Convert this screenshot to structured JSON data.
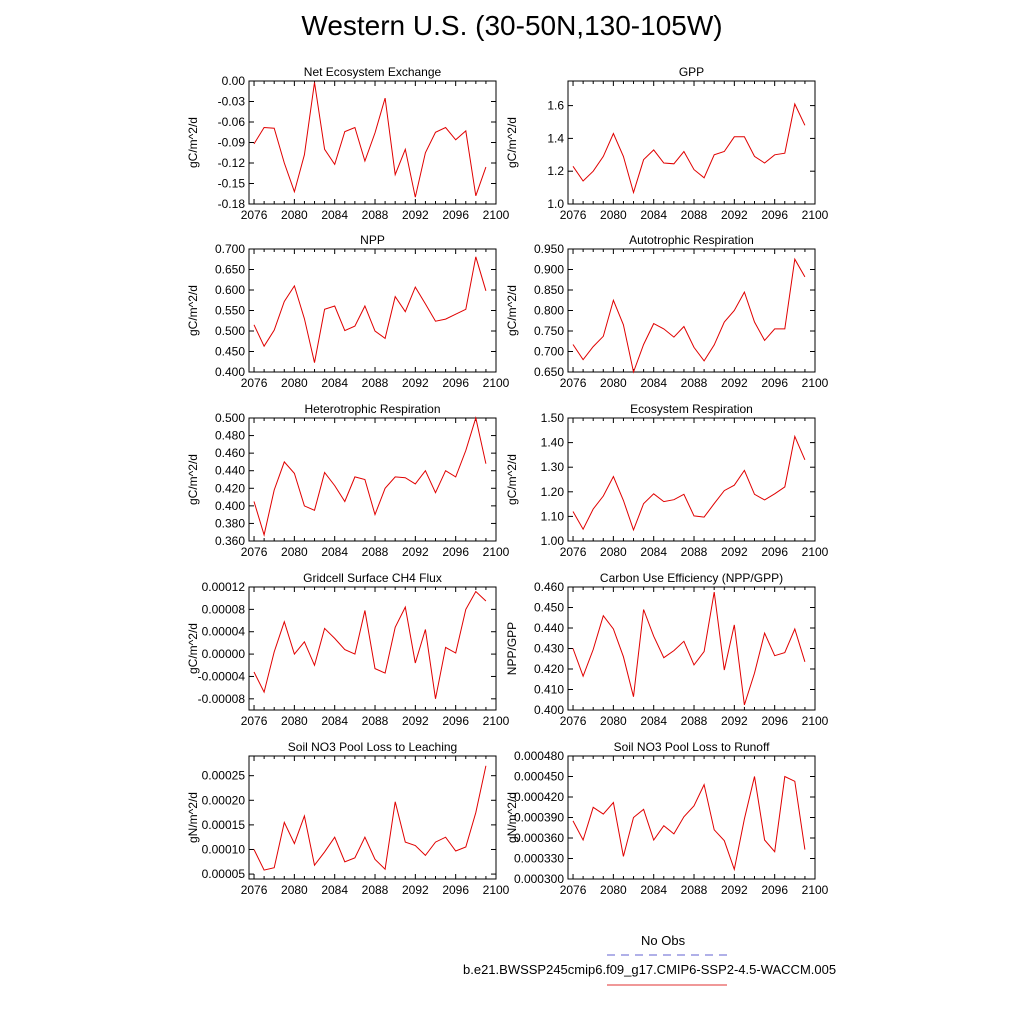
{
  "figure": {
    "title": "Western U.S. (30-50N,130-105W)"
  },
  "legend": {
    "entries": [
      {
        "label": "No Obs",
        "color": "#6060d0",
        "style": "dashed"
      },
      {
        "label": "b.e21.BWSSP245cmip6.f09_g17.CMIP6-SSP2-4.5-WACCM.005",
        "color": "#e03030",
        "style": "solid"
      }
    ]
  },
  "chart_data": [
    {
      "type": "line",
      "title": "Net Ecosystem Exchange",
      "ylabel": "gC/m^2/d",
      "xlim": [
        2075.5,
        2100
      ],
      "ylim": [
        -0.18,
        0.0
      ],
      "yticks": [
        -0.18,
        -0.15,
        -0.12,
        -0.09,
        -0.06,
        -0.03,
        0.0
      ],
      "ytick_labels": [
        "-0.18",
        "-0.15",
        "-0.12",
        "-0.09",
        "-0.06",
        "-0.03",
        "0.00"
      ],
      "xticks": [
        2076,
        2080,
        2084,
        2088,
        2092,
        2096,
        2100
      ],
      "series": [
        {
          "color": "#e00000",
          "x": [
            2076,
            2077,
            2078,
            2079,
            2080,
            2081,
            2082,
            2083,
            2084,
            2085,
            2086,
            2087,
            2088,
            2089,
            2090,
            2091,
            2092,
            2093,
            2094,
            2095,
            2096,
            2097,
            2098,
            2099
          ],
          "y": [
            -0.092,
            -0.068,
            -0.069,
            -0.12,
            -0.162,
            -0.108,
            -0.002,
            -0.1,
            -0.122,
            -0.074,
            -0.068,
            -0.117,
            -0.076,
            -0.025,
            -0.137,
            -0.1,
            -0.17,
            -0.105,
            -0.075,
            -0.068,
            -0.086,
            -0.073,
            -0.168,
            -0.126
          ]
        }
      ]
    },
    {
      "type": "line",
      "title": "GPP",
      "ylabel": "gC/m^2/d",
      "xlim": [
        2075.5,
        2100
      ],
      "ylim": [
        1.0,
        1.75
      ],
      "yticks": [
        1.0,
        1.2,
        1.4,
        1.6
      ],
      "ytick_labels": [
        "1.0",
        "1.2",
        "1.4",
        "1.6"
      ],
      "xticks": [
        2076,
        2080,
        2084,
        2088,
        2092,
        2096,
        2100
      ],
      "series": [
        {
          "color": "#e00000",
          "x": [
            2076,
            2077,
            2078,
            2079,
            2080,
            2081,
            2082,
            2083,
            2084,
            2085,
            2086,
            2087,
            2088,
            2089,
            2090,
            2091,
            2092,
            2093,
            2094,
            2095,
            2096,
            2097,
            2098,
            2099
          ],
          "y": [
            1.23,
            1.14,
            1.2,
            1.29,
            1.43,
            1.29,
            1.07,
            1.27,
            1.33,
            1.25,
            1.245,
            1.32,
            1.21,
            1.16,
            1.3,
            1.32,
            1.41,
            1.41,
            1.29,
            1.25,
            1.3,
            1.31,
            1.61,
            1.48
          ]
        }
      ]
    },
    {
      "type": "line",
      "title": "NPP",
      "ylabel": "gC/m^2/d",
      "xlim": [
        2075.5,
        2100
      ],
      "ylim": [
        0.4,
        0.7
      ],
      "yticks": [
        0.4,
        0.45,
        0.5,
        0.55,
        0.6,
        0.65,
        0.7
      ],
      "ytick_labels": [
        "0.400",
        "0.450",
        "0.500",
        "0.550",
        "0.600",
        "0.650",
        "0.700"
      ],
      "xticks": [
        2076,
        2080,
        2084,
        2088,
        2092,
        2096,
        2100
      ],
      "series": [
        {
          "color": "#e00000",
          "x": [
            2076,
            2077,
            2078,
            2079,
            2080,
            2081,
            2082,
            2083,
            2084,
            2085,
            2086,
            2087,
            2088,
            2089,
            2090,
            2091,
            2092,
            2093,
            2094,
            2095,
            2096,
            2097,
            2098,
            2099
          ],
          "y": [
            0.515,
            0.463,
            0.502,
            0.572,
            0.61,
            0.53,
            0.423,
            0.553,
            0.561,
            0.501,
            0.512,
            0.561,
            0.5,
            0.482,
            0.584,
            0.547,
            0.607,
            0.566,
            0.524,
            0.529,
            0.541,
            0.553,
            0.681,
            0.598
          ]
        }
      ]
    },
    {
      "type": "line",
      "title": "Autotrophic Respiration",
      "ylabel": "gC/m^2/d",
      "xlim": [
        2075.5,
        2100
      ],
      "ylim": [
        0.65,
        0.95
      ],
      "yticks": [
        0.65,
        0.7,
        0.75,
        0.8,
        0.85,
        0.9,
        0.95
      ],
      "ytick_labels": [
        "0.650",
        "0.700",
        "0.750",
        "0.800",
        "0.850",
        "0.900",
        "0.950"
      ],
      "xticks": [
        2076,
        2080,
        2084,
        2088,
        2092,
        2096,
        2100
      ],
      "series": [
        {
          "color": "#e00000",
          "x": [
            2076,
            2077,
            2078,
            2079,
            2080,
            2081,
            2082,
            2083,
            2084,
            2085,
            2086,
            2087,
            2088,
            2089,
            2090,
            2091,
            2092,
            2093,
            2094,
            2095,
            2096,
            2097,
            2098,
            2099
          ],
          "y": [
            0.717,
            0.68,
            0.712,
            0.737,
            0.825,
            0.765,
            0.65,
            0.717,
            0.768,
            0.755,
            0.735,
            0.761,
            0.71,
            0.677,
            0.716,
            0.772,
            0.8,
            0.845,
            0.772,
            0.727,
            0.755,
            0.755,
            0.925,
            0.882
          ]
        }
      ]
    },
    {
      "type": "line",
      "title": "Heterotrophic Respiration",
      "ylabel": "gC/m^2/d",
      "xlim": [
        2075.5,
        2100
      ],
      "ylim": [
        0.36,
        0.5
      ],
      "yticks": [
        0.36,
        0.38,
        0.4,
        0.42,
        0.44,
        0.46,
        0.48,
        0.5
      ],
      "ytick_labels": [
        "0.360",
        "0.380",
        "0.400",
        "0.420",
        "0.440",
        "0.460",
        "0.480",
        "0.500"
      ],
      "xticks": [
        2076,
        2080,
        2084,
        2088,
        2092,
        2096,
        2100
      ],
      "series": [
        {
          "color": "#e00000",
          "x": [
            2076,
            2077,
            2078,
            2079,
            2080,
            2081,
            2082,
            2083,
            2084,
            2085,
            2086,
            2087,
            2088,
            2089,
            2090,
            2091,
            2092,
            2093,
            2094,
            2095,
            2096,
            2097,
            2098,
            2099
          ],
          "y": [
            0.405,
            0.367,
            0.418,
            0.45,
            0.437,
            0.4,
            0.395,
            0.438,
            0.423,
            0.405,
            0.433,
            0.43,
            0.39,
            0.42,
            0.433,
            0.432,
            0.425,
            0.44,
            0.415,
            0.44,
            0.433,
            0.463,
            0.5,
            0.448
          ]
        }
      ]
    },
    {
      "type": "line",
      "title": "Ecosystem Respiration",
      "ylabel": "gC/m^2/d",
      "xlim": [
        2075.5,
        2100
      ],
      "ylim": [
        1.0,
        1.5
      ],
      "yticks": [
        1.0,
        1.1,
        1.2,
        1.3,
        1.4,
        1.5
      ],
      "ytick_labels": [
        "1.00",
        "1.10",
        "1.20",
        "1.30",
        "1.40",
        "1.50"
      ],
      "xticks": [
        2076,
        2080,
        2084,
        2088,
        2092,
        2096,
        2100
      ],
      "series": [
        {
          "color": "#e00000",
          "x": [
            2076,
            2077,
            2078,
            2079,
            2080,
            2081,
            2082,
            2083,
            2084,
            2085,
            2086,
            2087,
            2088,
            2089,
            2090,
            2091,
            2092,
            2093,
            2094,
            2095,
            2096,
            2097,
            2098,
            2099
          ],
          "y": [
            1.12,
            1.048,
            1.13,
            1.183,
            1.262,
            1.165,
            1.045,
            1.152,
            1.192,
            1.16,
            1.168,
            1.19,
            1.102,
            1.097,
            1.152,
            1.205,
            1.227,
            1.287,
            1.19,
            1.167,
            1.192,
            1.22,
            1.425,
            1.33
          ]
        }
      ]
    },
    {
      "type": "line",
      "title": "Gridcell Surface CH4 Flux",
      "ylabel": "gC/m^2/d",
      "xlim": [
        2075.5,
        2100
      ],
      "ylim": [
        -0.0001,
        0.00012
      ],
      "yticks": [
        -8e-05,
        -4e-05,
        0.0,
        4e-05,
        8e-05,
        0.00012
      ],
      "ytick_labels": [
        "-0.00008",
        "-0.00004",
        "0.00000",
        "0.00004",
        "0.00008",
        "0.00012"
      ],
      "xticks": [
        2076,
        2080,
        2084,
        2088,
        2092,
        2096,
        2100
      ],
      "series": [
        {
          "color": "#e00000",
          "x": [
            2076,
            2077,
            2078,
            2079,
            2080,
            2081,
            2082,
            2083,
            2084,
            2085,
            2086,
            2087,
            2088,
            2089,
            2090,
            2091,
            2092,
            2093,
            2094,
            2095,
            2096,
            2097,
            2098,
            2099
          ],
          "y": [
            -3.2e-05,
            -6.8e-05,
            4e-06,
            5.8e-05,
            0.0,
            2.2e-05,
            -2e-05,
            4.6e-05,
            2.8e-05,
            8e-06,
            0.0,
            7.8e-05,
            -2.6e-05,
            -3.4e-05,
            4.8e-05,
            8.4e-05,
            -1.6e-05,
            4.4e-05,
            -8e-05,
            1.2e-05,
            2e-06,
            8e-05,
            0.000112,
            9.5e-05
          ]
        }
      ]
    },
    {
      "type": "line",
      "title": "Carbon Use Efficiency (NPP/GPP)",
      "ylabel": "NPP/GPP",
      "xlim": [
        2075.5,
        2100
      ],
      "ylim": [
        0.4,
        0.46
      ],
      "yticks": [
        0.4,
        0.41,
        0.42,
        0.43,
        0.44,
        0.45,
        0.46
      ],
      "ytick_labels": [
        "0.400",
        "0.410",
        "0.420",
        "0.430",
        "0.440",
        "0.450",
        "0.460"
      ],
      "xticks": [
        2076,
        2080,
        2084,
        2088,
        2092,
        2096,
        2100
      ],
      "series": [
        {
          "color": "#e00000",
          "x": [
            2076,
            2077,
            2078,
            2079,
            2080,
            2081,
            2082,
            2083,
            2084,
            2085,
            2086,
            2087,
            2088,
            2089,
            2090,
            2091,
            2092,
            2093,
            2094,
            2095,
            2096,
            2097,
            2098,
            2099
          ],
          "y": [
            0.43,
            0.4165,
            0.4295,
            0.446,
            0.4395,
            0.426,
            0.4065,
            0.449,
            0.436,
            0.4255,
            0.429,
            0.4335,
            0.422,
            0.4285,
            0.4575,
            0.4195,
            0.4415,
            0.4025,
            0.418,
            0.4375,
            0.4265,
            0.428,
            0.4395,
            0.4235
          ]
        }
      ]
    },
    {
      "type": "line",
      "title": "Soil NO3 Pool Loss to Leaching",
      "ylabel": "gN/m^2/d",
      "xlim": [
        2075.5,
        2100
      ],
      "ylim": [
        4e-05,
        0.00029
      ],
      "yticks": [
        5e-05,
        0.0001,
        0.00015,
        0.0002,
        0.00025
      ],
      "ytick_labels": [
        "0.00005",
        "0.00010",
        "0.00015",
        "0.00020",
        "0.00025"
      ],
      "xticks": [
        2076,
        2080,
        2084,
        2088,
        2092,
        2096,
        2100
      ],
      "series": [
        {
          "color": "#e00000",
          "x": [
            2076,
            2077,
            2078,
            2079,
            2080,
            2081,
            2082,
            2083,
            2084,
            2085,
            2086,
            2087,
            2088,
            2089,
            2090,
            2091,
            2092,
            2093,
            2094,
            2095,
            2096,
            2097,
            2098,
            2099
          ],
          "y": [
            0.0001,
            5.8e-05,
            6.3e-05,
            0.000155,
            0.000112,
            0.000168,
            6.8e-05,
            9.5e-05,
            0.000125,
            7.5e-05,
            8.3e-05,
            0.000125,
            8e-05,
            6e-05,
            0.000197,
            0.000115,
            0.000108,
            8.8e-05,
            0.000115,
            0.000125,
            9.7e-05,
            0.000105,
            0.000175,
            0.00027
          ]
        }
      ]
    },
    {
      "type": "line",
      "title": "Soil NO3 Pool Loss to Runoff",
      "ylabel": "gN/m^2/d",
      "xlim": [
        2075.5,
        2100
      ],
      "ylim": [
        0.0003,
        0.00048
      ],
      "yticks": [
        0.0003,
        0.00033,
        0.00036,
        0.00039,
        0.00042,
        0.00045,
        0.00048
      ],
      "ytick_labels": [
        "0.000300",
        "0.000330",
        "0.000360",
        "0.000390",
        "0.000420",
        "0.000450",
        "0.000480"
      ],
      "xticks": [
        2076,
        2080,
        2084,
        2088,
        2092,
        2096,
        2100
      ],
      "series": [
        {
          "color": "#e00000",
          "x": [
            2076,
            2077,
            2078,
            2079,
            2080,
            2081,
            2082,
            2083,
            2084,
            2085,
            2086,
            2087,
            2088,
            2089,
            2090,
            2091,
            2092,
            2093,
            2094,
            2095,
            2096,
            2097,
            2098,
            2099
          ],
          "y": [
            0.000385,
            0.000357,
            0.000405,
            0.000395,
            0.000412,
            0.000333,
            0.00039,
            0.000402,
            0.000357,
            0.000378,
            0.000366,
            0.000391,
            0.000407,
            0.000438,
            0.000372,
            0.000356,
            0.000314,
            0.000388,
            0.00045,
            0.000357,
            0.00034,
            0.00045,
            0.000443,
            0.000343
          ]
        }
      ]
    }
  ]
}
